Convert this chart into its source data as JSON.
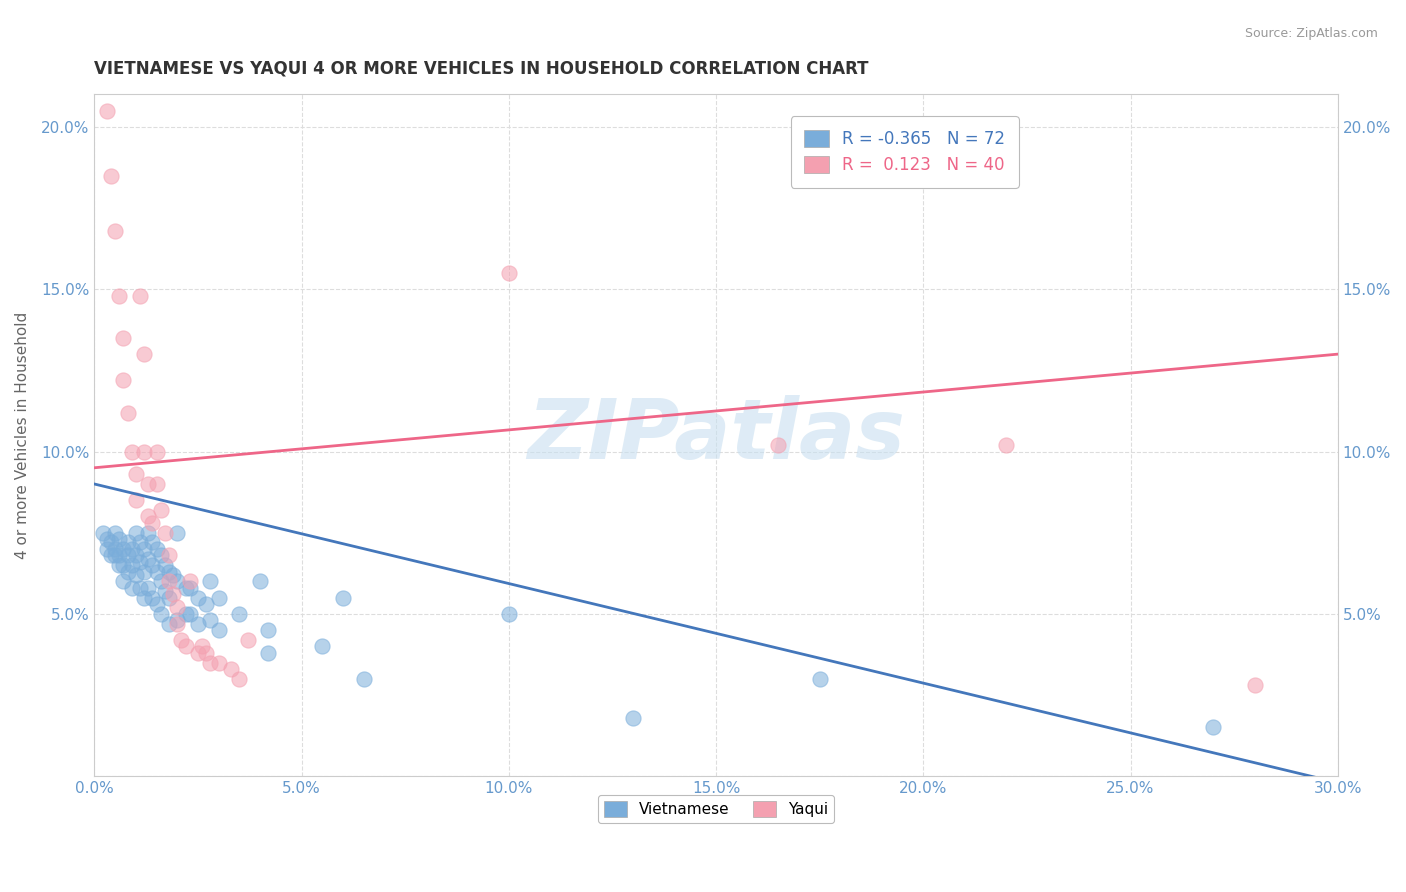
{
  "title": "VIETNAMESE VS YAQUI 4 OR MORE VEHICLES IN HOUSEHOLD CORRELATION CHART",
  "source": "Source: ZipAtlas.com",
  "ylabel_text": "4 or more Vehicles in Household",
  "watermark": "ZIPatlas",
  "legend_labels": [
    "Vietnamese",
    "Yaqui"
  ],
  "r_vietnamese": -0.365,
  "n_vietnamese": 72,
  "r_yaqui": 0.123,
  "n_yaqui": 40,
  "xlim": [
    0.0,
    0.3
  ],
  "ylim": [
    0.0,
    0.21
  ],
  "xtick_vals": [
    0.0,
    0.05,
    0.1,
    0.15,
    0.2,
    0.25,
    0.3
  ],
  "xtick_labels": [
    "0.0%",
    "5.0%",
    "10.0%",
    "15.0%",
    "20.0%",
    "25.0%",
    "30.0%"
  ],
  "ytick_vals": [
    0.0,
    0.05,
    0.1,
    0.15,
    0.2
  ],
  "ytick_labels": [
    "",
    "5.0%",
    "10.0%",
    "15.0%",
    "20.0%"
  ],
  "background_color": "#ffffff",
  "grid_color": "#dddddd",
  "title_color": "#333333",
  "blue_color": "#7aadda",
  "pink_color": "#f4a0b0",
  "viet_line_x": [
    0.0,
    0.3
  ],
  "viet_line_y": [
    0.09,
    -0.002
  ],
  "yaqui_line_x": [
    0.0,
    0.3
  ],
  "yaqui_line_y": [
    0.095,
    0.13
  ],
  "viet_scatter": [
    [
      0.002,
      0.075
    ],
    [
      0.003,
      0.073
    ],
    [
      0.003,
      0.07
    ],
    [
      0.004,
      0.072
    ],
    [
      0.004,
      0.068
    ],
    [
      0.005,
      0.075
    ],
    [
      0.005,
      0.07
    ],
    [
      0.005,
      0.068
    ],
    [
      0.006,
      0.073
    ],
    [
      0.006,
      0.068
    ],
    [
      0.006,
      0.065
    ],
    [
      0.007,
      0.07
    ],
    [
      0.007,
      0.065
    ],
    [
      0.007,
      0.06
    ],
    [
      0.008,
      0.072
    ],
    [
      0.008,
      0.068
    ],
    [
      0.008,
      0.063
    ],
    [
      0.009,
      0.07
    ],
    [
      0.009,
      0.065
    ],
    [
      0.009,
      0.058
    ],
    [
      0.01,
      0.075
    ],
    [
      0.01,
      0.068
    ],
    [
      0.01,
      0.062
    ],
    [
      0.011,
      0.072
    ],
    [
      0.011,
      0.066
    ],
    [
      0.011,
      0.058
    ],
    [
      0.012,
      0.07
    ],
    [
      0.012,
      0.063
    ],
    [
      0.012,
      0.055
    ],
    [
      0.013,
      0.075
    ],
    [
      0.013,
      0.067
    ],
    [
      0.013,
      0.058
    ],
    [
      0.014,
      0.072
    ],
    [
      0.014,
      0.065
    ],
    [
      0.014,
      0.055
    ],
    [
      0.015,
      0.07
    ],
    [
      0.015,
      0.063
    ],
    [
      0.015,
      0.053
    ],
    [
      0.016,
      0.068
    ],
    [
      0.016,
      0.06
    ],
    [
      0.016,
      0.05
    ],
    [
      0.017,
      0.065
    ],
    [
      0.017,
      0.057
    ],
    [
      0.018,
      0.063
    ],
    [
      0.018,
      0.055
    ],
    [
      0.018,
      0.047
    ],
    [
      0.019,
      0.062
    ],
    [
      0.02,
      0.075
    ],
    [
      0.02,
      0.06
    ],
    [
      0.02,
      0.048
    ],
    [
      0.022,
      0.058
    ],
    [
      0.022,
      0.05
    ],
    [
      0.023,
      0.058
    ],
    [
      0.023,
      0.05
    ],
    [
      0.025,
      0.055
    ],
    [
      0.025,
      0.047
    ],
    [
      0.027,
      0.053
    ],
    [
      0.028,
      0.06
    ],
    [
      0.028,
      0.048
    ],
    [
      0.03,
      0.055
    ],
    [
      0.03,
      0.045
    ],
    [
      0.035,
      0.05
    ],
    [
      0.04,
      0.06
    ],
    [
      0.042,
      0.045
    ],
    [
      0.042,
      0.038
    ],
    [
      0.055,
      0.04
    ],
    [
      0.06,
      0.055
    ],
    [
      0.065,
      0.03
    ],
    [
      0.1,
      0.05
    ],
    [
      0.13,
      0.018
    ],
    [
      0.175,
      0.03
    ],
    [
      0.27,
      0.015
    ]
  ],
  "yaqui_scatter": [
    [
      0.003,
      0.205
    ],
    [
      0.004,
      0.185
    ],
    [
      0.005,
      0.168
    ],
    [
      0.006,
      0.148
    ],
    [
      0.007,
      0.135
    ],
    [
      0.007,
      0.122
    ],
    [
      0.008,
      0.112
    ],
    [
      0.009,
      0.1
    ],
    [
      0.01,
      0.093
    ],
    [
      0.01,
      0.085
    ],
    [
      0.011,
      0.148
    ],
    [
      0.012,
      0.13
    ],
    [
      0.012,
      0.1
    ],
    [
      0.013,
      0.09
    ],
    [
      0.013,
      0.08
    ],
    [
      0.014,
      0.078
    ],
    [
      0.015,
      0.1
    ],
    [
      0.015,
      0.09
    ],
    [
      0.016,
      0.082
    ],
    [
      0.017,
      0.075
    ],
    [
      0.018,
      0.068
    ],
    [
      0.018,
      0.06
    ],
    [
      0.019,
      0.056
    ],
    [
      0.02,
      0.052
    ],
    [
      0.02,
      0.047
    ],
    [
      0.021,
      0.042
    ],
    [
      0.022,
      0.04
    ],
    [
      0.023,
      0.06
    ],
    [
      0.025,
      0.038
    ],
    [
      0.026,
      0.04
    ],
    [
      0.027,
      0.038
    ],
    [
      0.028,
      0.035
    ],
    [
      0.03,
      0.035
    ],
    [
      0.033,
      0.033
    ],
    [
      0.035,
      0.03
    ],
    [
      0.037,
      0.042
    ],
    [
      0.1,
      0.155
    ],
    [
      0.165,
      0.102
    ],
    [
      0.22,
      0.102
    ],
    [
      0.28,
      0.028
    ]
  ]
}
